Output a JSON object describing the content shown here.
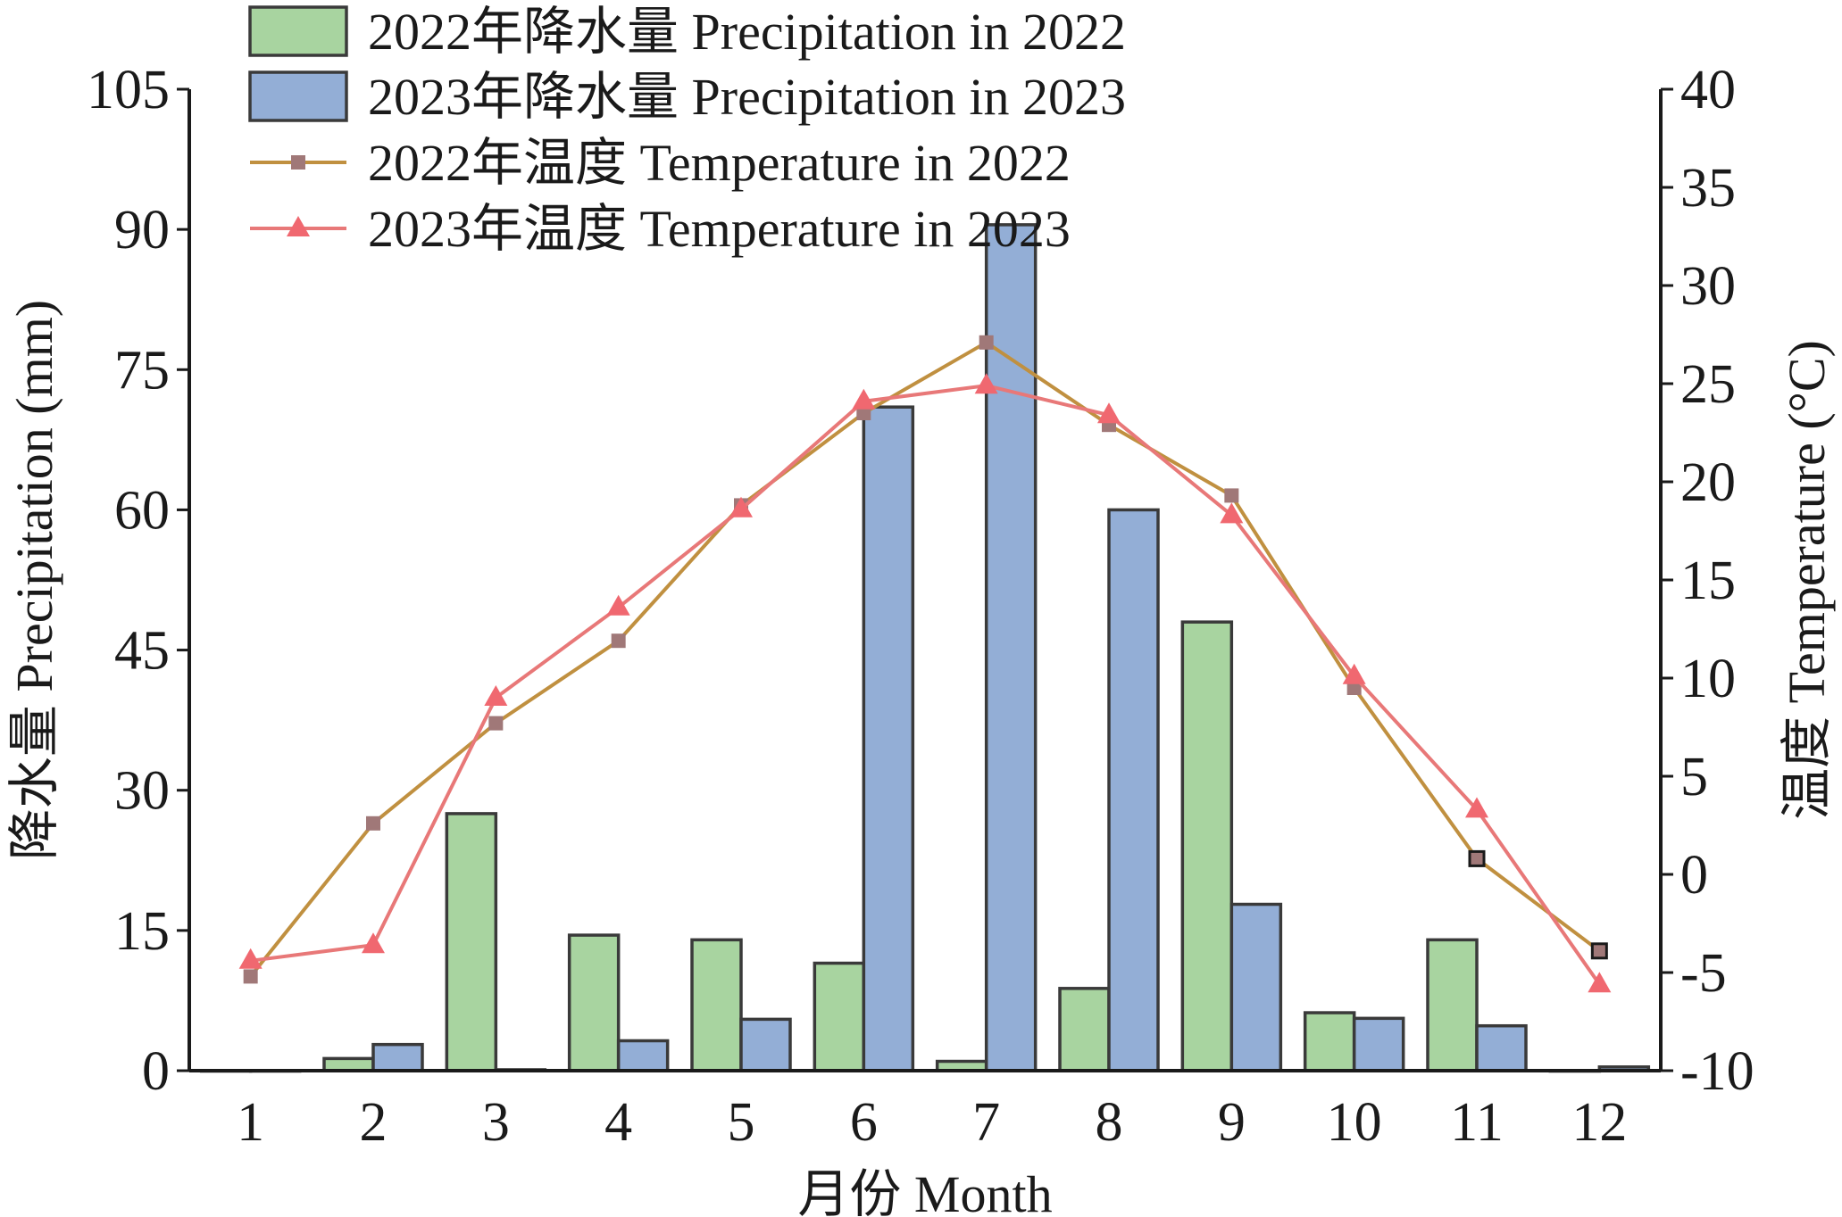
{
  "chart_data": {
    "type": "bar",
    "categories": [
      "1",
      "2",
      "3",
      "4",
      "5",
      "6",
      "7",
      "8",
      "9",
      "10",
      "11",
      "12"
    ],
    "xlabel": "月份 Month",
    "ylabel": "降水量 Precipitation (mm)",
    "y2label": "温度 Temperature (°C)",
    "ylim": [
      0,
      105
    ],
    "y2lim": [
      -10,
      40
    ],
    "yticks": [
      "0",
      "15",
      "30",
      "45",
      "60",
      "75",
      "90",
      "105"
    ],
    "y2ticks": [
      "-10",
      "-5",
      "0",
      "5",
      "10",
      "15",
      "20",
      "25",
      "30",
      "35",
      "40"
    ],
    "legend_position": "top-left",
    "series": [
      {
        "name": "2022年降水量 Precipitation in 2022",
        "kind": "bar",
        "axis": "left",
        "color": "#a8d4a0",
        "values": [
          0,
          1.3,
          27.5,
          14.5,
          14,
          11.5,
          1,
          8.8,
          48,
          6.2,
          14,
          0
        ]
      },
      {
        "name": "2023年降水量 Precipitation in 2023",
        "kind": "bar",
        "axis": "left",
        "color": "#93aed6",
        "values": [
          0,
          2.8,
          0.1,
          3.2,
          5.5,
          71,
          90.5,
          60,
          17.8,
          5.6,
          4.8,
          0.4
        ]
      },
      {
        "name": "2022年温度 Temperature in 2022",
        "kind": "line",
        "axis": "right",
        "color": "#c09040",
        "marker": "square",
        "marker_color": "#a07878",
        "values": [
          -5.2,
          2.6,
          7.7,
          11.9,
          18.8,
          23.5,
          27.1,
          22.9,
          19.3,
          9.5,
          0.8,
          -3.9
        ]
      },
      {
        "name": "2023年温度 Temperature in 2023",
        "kind": "line",
        "axis": "right",
        "color": "#e87878",
        "marker": "triangle",
        "marker_color": "#f06870",
        "values": [
          -4.4,
          -3.6,
          9.0,
          13.6,
          18.6,
          24.1,
          24.9,
          23.4,
          18.3,
          10.1,
          3.3,
          -5.6
        ]
      }
    ]
  }
}
